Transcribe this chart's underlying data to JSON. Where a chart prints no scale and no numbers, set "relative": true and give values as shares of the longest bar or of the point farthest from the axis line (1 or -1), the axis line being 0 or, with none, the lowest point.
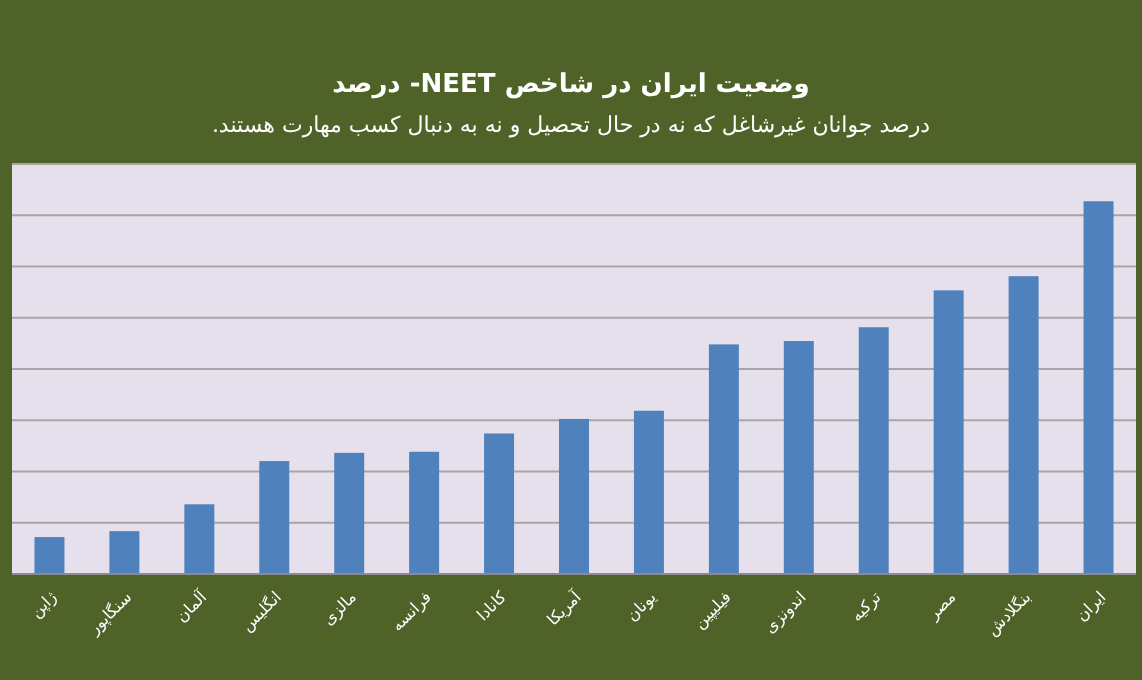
{
  "chart_data": {
    "type": "bar",
    "title": "وضعیت ایران در شاخص NEET- درصد",
    "subtitle": "درصد جوانان غیرشاغل که نه در حال تحصیل و نه به دنبال کسب مهارت هستند.",
    "categories": [
      "ژاپن",
      "سنگاپور",
      "آلمان",
      "انگلیس",
      "مالزی",
      "فرانسه",
      "کانادا",
      "آمریکا",
      "یونان",
      "فیلیپین",
      "اندونزی",
      "ترکیه",
      "مصر",
      "بنگلادش",
      "ایران"
    ],
    "values": [
      0.099,
      0.115,
      0.187,
      0.303,
      0.325,
      0.328,
      0.377,
      0.416,
      0.438,
      0.616,
      0.625,
      0.662,
      0.761,
      0.799,
      1
    ],
    "color": "#4f81bd",
    "relative": true,
    "grid": "y"
  }
}
